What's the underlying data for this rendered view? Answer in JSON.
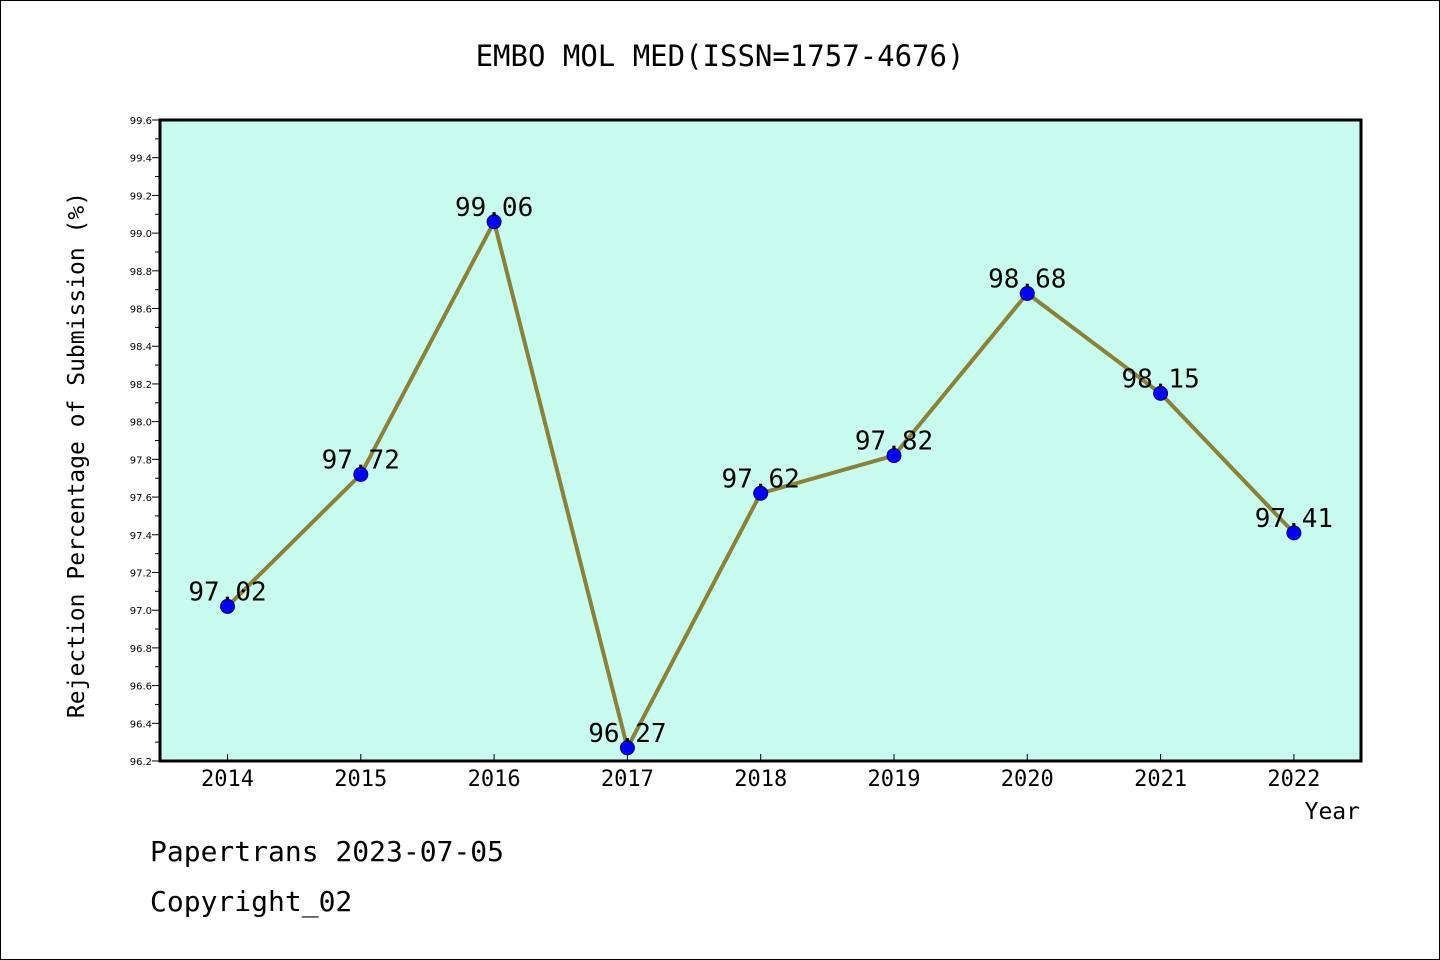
{
  "footer": {
    "line1": "Papertrans 2023-07-05",
    "line2": "Copyright_02"
  },
  "colors": {
    "plot_background": "#c8fcee",
    "line": "#8b8236",
    "marker": "#0000ff",
    "axis": "#000000"
  },
  "chart_data": {
    "type": "line",
    "title": "EMBO MOL MED(ISSN=1757-4676)",
    "xlabel": "Year",
    "ylabel": "Rejection Percentage of Submission (%)",
    "categories": [
      "2014",
      "2015",
      "2016",
      "2017",
      "2018",
      "2019",
      "2020",
      "2021",
      "2022"
    ],
    "series": [
      {
        "values": [
          97.02,
          97.72,
          99.06,
          96.27,
          97.62,
          97.82,
          98.68,
          98.15,
          97.41
        ],
        "labels": [
          "97.02",
          "97.72",
          "99.06",
          "96.27",
          "97.62",
          "97.82",
          "98.68",
          "98.15",
          "97.41"
        ]
      }
    ],
    "ylim": [
      96.2,
      99.6
    ],
    "yticks": [
      "96.2",
      "96.4",
      "96.6",
      "96.8",
      "97.0",
      "97.2",
      "97.4",
      "97.6",
      "97.8",
      "98.0",
      "98.2",
      "98.4",
      "98.6",
      "98.8",
      "99.0",
      "99.2",
      "99.4",
      "99.6"
    ],
    "grid": false,
    "legend": "none"
  }
}
